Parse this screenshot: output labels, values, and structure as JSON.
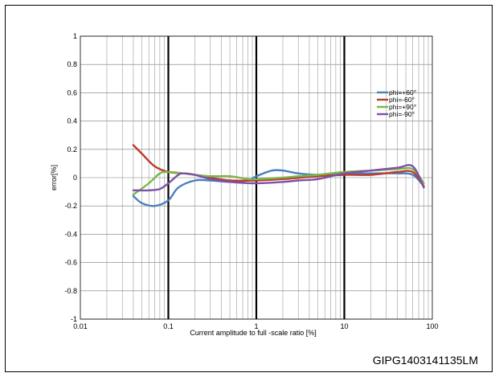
{
  "figure_id": "GIPG1403141135LM",
  "chart_data": {
    "type": "line",
    "title": "",
    "xlabel": "Current amplitude to full  -scale ratio [%]",
    "ylabel": "error[%]",
    "x_scale": "log",
    "xlim": [
      0.01,
      100
    ],
    "ylim": [
      -1,
      1
    ],
    "x_ticks": [
      "0.01",
      "0.1",
      "1",
      "10",
      "100"
    ],
    "y_ticks": [
      "1",
      "0.8",
      "0.6",
      "0.4",
      "0.2",
      "0",
      "-0.2",
      "-0.4",
      "-0.6",
      "-0.8",
      "-1"
    ],
    "grid": true,
    "legend_position": "top-right",
    "series": [
      {
        "name": "phi=+60°",
        "color": "#4a7fbf",
        "points": [
          [
            0.04,
            -0.13
          ],
          [
            0.05,
            -0.18
          ],
          [
            0.07,
            -0.2
          ],
          [
            0.1,
            -0.16
          ],
          [
            0.13,
            -0.07
          ],
          [
            0.2,
            -0.02
          ],
          [
            0.3,
            -0.02
          ],
          [
            0.5,
            -0.03
          ],
          [
            0.8,
            -0.02
          ],
          [
            1,
            0.01
          ],
          [
            1.5,
            0.05
          ],
          [
            2,
            0.05
          ],
          [
            3,
            0.03
          ],
          [
            5,
            0.02
          ],
          [
            10,
            0.03
          ],
          [
            20,
            0.03
          ],
          [
            40,
            0.03
          ],
          [
            60,
            0.02
          ],
          [
            80,
            -0.06
          ]
        ]
      },
      {
        "name": "phi=-60°",
        "color": "#c0392b",
        "points": [
          [
            0.04,
            0.23
          ],
          [
            0.05,
            0.17
          ],
          [
            0.07,
            0.08
          ],
          [
            0.1,
            0.04
          ],
          [
            0.15,
            0.03
          ],
          [
            0.2,
            0.02
          ],
          [
            0.3,
            0.0
          ],
          [
            0.5,
            -0.02
          ],
          [
            1,
            -0.02
          ],
          [
            2,
            -0.01
          ],
          [
            5,
            0.01
          ],
          [
            10,
            0.02
          ],
          [
            20,
            0.02
          ],
          [
            40,
            0.04
          ],
          [
            60,
            0.04
          ],
          [
            80,
            -0.06
          ]
        ]
      },
      {
        "name": "phi=+90°",
        "color": "#7ab648",
        "points": [
          [
            0.04,
            -0.12
          ],
          [
            0.06,
            -0.04
          ],
          [
            0.08,
            0.03
          ],
          [
            0.1,
            0.04
          ],
          [
            0.15,
            0.03
          ],
          [
            0.2,
            0.02
          ],
          [
            0.3,
            0.01
          ],
          [
            0.5,
            0.01
          ],
          [
            0.8,
            -0.01
          ],
          [
            1,
            -0.01
          ],
          [
            2,
            0.0
          ],
          [
            3,
            0.01
          ],
          [
            5,
            0.02
          ],
          [
            10,
            0.04
          ],
          [
            20,
            0.05
          ],
          [
            40,
            0.06
          ],
          [
            60,
            0.06
          ],
          [
            80,
            -0.04
          ]
        ]
      },
      {
        "name": "phi=-90°",
        "color": "#7b52a8",
        "points": [
          [
            0.04,
            -0.09
          ],
          [
            0.06,
            -0.09
          ],
          [
            0.08,
            -0.08
          ],
          [
            0.1,
            -0.04
          ],
          [
            0.13,
            0.02
          ],
          [
            0.15,
            0.03
          ],
          [
            0.2,
            0.02
          ],
          [
            0.3,
            -0.01
          ],
          [
            0.5,
            -0.03
          ],
          [
            1,
            -0.04
          ],
          [
            2,
            -0.03
          ],
          [
            3,
            -0.02
          ],
          [
            5,
            -0.01
          ],
          [
            10,
            0.03
          ],
          [
            20,
            0.05
          ],
          [
            40,
            0.07
          ],
          [
            60,
            0.08
          ],
          [
            80,
            -0.07
          ]
        ]
      }
    ]
  }
}
